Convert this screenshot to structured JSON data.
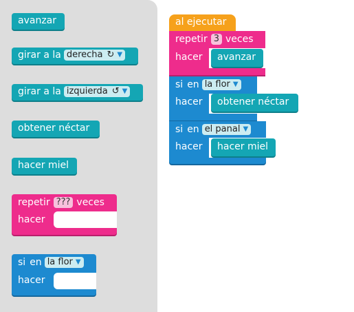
{
  "toolbox": {
    "avanzar": "avanzar",
    "girar_derecha": {
      "label": "girar a la",
      "dir": "derecha",
      "sym": "↻"
    },
    "girar_izquierda": {
      "label": "girar a la",
      "dir": "izquierda",
      "sym": "↺"
    },
    "obtener": "obtener néctar",
    "hacer_miel": "hacer miel",
    "repetir": {
      "label": "repetir",
      "count": "???",
      "veces": "veces",
      "hacer": "hacer"
    },
    "si": {
      "label": "si",
      "en": "en",
      "target": "la flor",
      "hacer": "hacer"
    }
  },
  "workspace": {
    "al_ejecutar": "al ejecutar",
    "repetir": {
      "label": "repetir",
      "count": "3",
      "veces": "veces",
      "hacer": "hacer",
      "inner": "avanzar"
    },
    "si1": {
      "label": "si",
      "en": "en",
      "target": "la flor",
      "hacer": "hacer",
      "inner": "obtener néctar"
    },
    "si2": {
      "label": "si",
      "en": "en",
      "target": "el panal",
      "hacer": "hacer",
      "inner": "hacer miel"
    }
  },
  "colors": {
    "teal": "#14a6b4",
    "pink": "#ee2c8c",
    "blue": "#1d8ad0",
    "orange": "#f6a11b"
  },
  "icons": {
    "dropdown": "▼"
  }
}
